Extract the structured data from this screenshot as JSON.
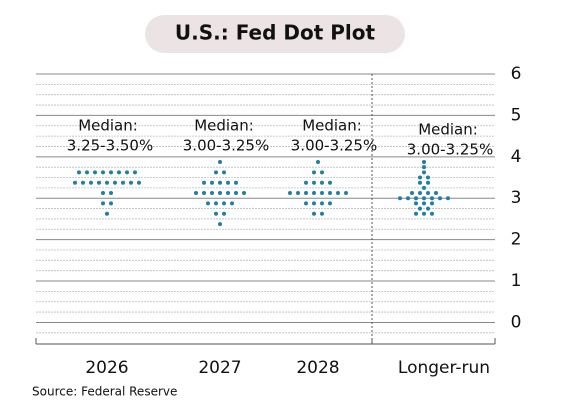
{
  "chart_data": {
    "type": "dot",
    "title": "U.S.: Fed Dot Plot",
    "source": "Source: Federal Reserve",
    "categories": [
      "2026",
      "2027",
      "2028",
      "Longer-run"
    ],
    "median_label": "Median:",
    "medians": [
      "3.25-3.50%",
      "3.00-3.25%",
      "3.00-3.25%",
      "3.00-3.25%"
    ],
    "color": "#1f7fa0",
    "values": [
      [
        3.625,
        3.625,
        3.625,
        3.625,
        3.625,
        3.625,
        3.625,
        3.625,
        3.375,
        3.375,
        3.375,
        3.375,
        3.375,
        3.375,
        3.375,
        3.375,
        3.375,
        3.125,
        3.125,
        2.875,
        2.875,
        2.625
      ],
      [
        3.875,
        3.625,
        3.625,
        3.375,
        3.375,
        3.375,
        3.375,
        3.375,
        3.125,
        3.125,
        3.125,
        3.125,
        3.125,
        3.125,
        3.125,
        2.875,
        2.875,
        2.875,
        2.875,
        2.625,
        2.625,
        2.375
      ],
      [
        3.875,
        3.625,
        3.625,
        3.375,
        3.375,
        3.375,
        3.375,
        3.125,
        3.125,
        3.125,
        3.125,
        3.125,
        3.125,
        3.125,
        3.125,
        2.875,
        2.875,
        2.875,
        2.875,
        2.625,
        2.625
      ],
      [
        3.875,
        3.75,
        3.625,
        3.5,
        3.5,
        3.375,
        3.375,
        3.25,
        3.125,
        3.125,
        3.125,
        3.125,
        3.0,
        3.0,
        3.0,
        3.0,
        3.0,
        3.0,
        3.0,
        2.875,
        2.875,
        2.875,
        2.75,
        2.75,
        2.625,
        2.625,
        2.625
      ]
    ],
    "ylim": [
      -0.4,
      6
    ],
    "yticks": [
      0,
      1,
      2,
      3,
      4,
      5,
      6
    ],
    "minor_step": 0.25,
    "grid": true
  }
}
